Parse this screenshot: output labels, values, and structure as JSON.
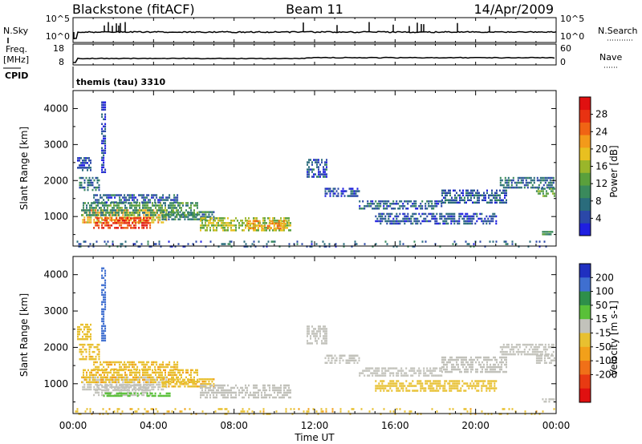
{
  "header": {
    "station": "Blackstone (fitACF)",
    "beam": "Beam 11",
    "date": "14/Apr/2009"
  },
  "strips": {
    "nsky": {
      "label": "N.Sky",
      "ticks": [
        "10^5",
        "10^0"
      ],
      "right_label": "N.Search",
      "right_ticks": [
        "10^5",
        "10^0"
      ]
    },
    "freq": {
      "label": "Freq.",
      "unit": "[MHz]",
      "ticks": [
        "18",
        "8"
      ],
      "right_label": "Nave",
      "right_ticks": [
        "60",
        "0"
      ]
    },
    "cpid": {
      "label": "CPID",
      "text": "themis (tau) 3310"
    }
  },
  "colors": {
    "power_scale": [
      "#1f1fe0",
      "#2b48a8",
      "#2a6c7c",
      "#3a8a5c",
      "#5aa03c",
      "#9ab62a",
      "#e8c020",
      "#f39a1a",
      "#f06414",
      "#e83212",
      "#e01010"
    ],
    "velocity_scale": [
      "#2030c0",
      "#3f6fd0",
      "#2e8f4a",
      "#59c039",
      "#c2c2bb",
      "#e8c030",
      "#f2a01a",
      "#f07018",
      "#e83a12",
      "#e01010"
    ]
  },
  "chart_data": [
    {
      "type": "heatmap",
      "name": "power",
      "xlabel": "Time UT",
      "ylabel": "Slant Range [km]",
      "xlim_hours": [
        0,
        24
      ],
      "ylim": [
        180,
        4500
      ],
      "x_ticks": [
        "00:00",
        "04:00",
        "08:00",
        "12:00",
        "16:00",
        "20:00",
        "00:00"
      ],
      "x_tick_hours": [
        0,
        4,
        8,
        12,
        16,
        20,
        24
      ],
      "y_ticks": [
        1000,
        2000,
        3000,
        4000
      ],
      "colorbar": {
        "label": "Power [dB]",
        "range": [
          0,
          32
        ],
        "ticks": [
          4,
          8,
          12,
          16,
          20,
          24,
          28
        ]
      },
      "regions": [
        {
          "t0": 0.45,
          "t1": 4.6,
          "r0": 850,
          "r1": 1200,
          "value": 20
        },
        {
          "t0": 1.0,
          "t1": 3.8,
          "r0": 700,
          "r1": 980,
          "value": 27
        },
        {
          "t0": 0.4,
          "t1": 6.2,
          "r0": 1050,
          "r1": 1400,
          "value": 11
        },
        {
          "t0": 1.0,
          "t1": 5.2,
          "r0": 1400,
          "r1": 1620,
          "value": 6
        },
        {
          "t0": 4.4,
          "t1": 7.0,
          "r0": 900,
          "r1": 1150,
          "value": 9
        },
        {
          "t0": 6.3,
          "t1": 10.8,
          "r0": 620,
          "r1": 980,
          "value": 16
        },
        {
          "t0": 8.6,
          "t1": 10.6,
          "r0": 650,
          "r1": 900,
          "value": 21
        },
        {
          "t0": 0.2,
          "t1": 0.9,
          "r0": 2250,
          "r1": 2650,
          "value": 5
        },
        {
          "t0": 0.3,
          "t1": 1.3,
          "r0": 1700,
          "r1": 2100,
          "value": 7
        },
        {
          "t0": 1.4,
          "t1": 1.6,
          "r0": 2200,
          "r1": 4200,
          "value": 4
        },
        {
          "t0": 0.1,
          "t1": 24.0,
          "r0": 190,
          "r1": 330,
          "value": 6
        },
        {
          "t0": 11.6,
          "t1": 12.6,
          "r0": 2100,
          "r1": 2600,
          "value": 5
        },
        {
          "t0": 12.5,
          "t1": 14.2,
          "r0": 1550,
          "r1": 1800,
          "value": 5
        },
        {
          "t0": 14.2,
          "t1": 18.3,
          "r0": 1200,
          "r1": 1450,
          "value": 6
        },
        {
          "t0": 18.3,
          "t1": 21.5,
          "r0": 1350,
          "r1": 1750,
          "value": 6
        },
        {
          "t0": 15.0,
          "t1": 21.0,
          "r0": 780,
          "r1": 1100,
          "value": 5
        },
        {
          "t0": 21.2,
          "t1": 23.9,
          "r0": 1800,
          "r1": 2100,
          "value": 7
        },
        {
          "t0": 23.0,
          "t1": 23.9,
          "r0": 1550,
          "r1": 1800,
          "value": 12
        },
        {
          "t0": 23.3,
          "t1": 24.0,
          "r0": 480,
          "r1": 600,
          "value": 9
        }
      ]
    },
    {
      "type": "heatmap",
      "name": "velocity",
      "xlabel": "Time UT",
      "ylabel": "Slant Range [km]",
      "xlim_hours": [
        0,
        24
      ],
      "ylim": [
        180,
        4500
      ],
      "x_ticks": [
        "00:00",
        "04:00",
        "08:00",
        "12:00",
        "16:00",
        "20:00",
        "00:00"
      ],
      "x_tick_hours": [
        0,
        4,
        8,
        12,
        16,
        20,
        24
      ],
      "y_ticks": [
        1000,
        2000,
        3000,
        4000
      ],
      "colorbar": {
        "label": "Velocity [m s-1]",
        "boundaries": [
          -250,
          -200,
          -100,
          -50,
          -15,
          15,
          50,
          100,
          200,
          250
        ],
        "tick_labels": [
          "200",
          "100",
          "50",
          "15",
          "-15",
          "-50",
          "-100",
          "-200"
        ]
      },
      "regions": [
        {
          "t0": 0.45,
          "t1": 4.6,
          "r0": 850,
          "r1": 1200,
          "value": 0
        },
        {
          "t0": 1.0,
          "t1": 3.8,
          "r0": 700,
          "r1": 980,
          "value": 0
        },
        {
          "t0": 0.4,
          "t1": 6.2,
          "r0": 1050,
          "r1": 1400,
          "value": -40
        },
        {
          "t0": 1.0,
          "t1": 5.2,
          "r0": 1400,
          "r1": 1620,
          "value": -40
        },
        {
          "t0": 4.4,
          "t1": 7.0,
          "r0": 900,
          "r1": 1150,
          "value": -40
        },
        {
          "t0": 6.3,
          "t1": 10.8,
          "r0": 620,
          "r1": 980,
          "value": 0
        },
        {
          "t0": 1.5,
          "t1": 4.8,
          "r0": 650,
          "r1": 760,
          "value": 30
        },
        {
          "t0": 0.2,
          "t1": 0.9,
          "r0": 2250,
          "r1": 2650,
          "value": -30
        },
        {
          "t0": 0.3,
          "t1": 1.3,
          "r0": 1700,
          "r1": 2100,
          "value": -40
        },
        {
          "t0": 1.4,
          "t1": 1.6,
          "r0": 2200,
          "r1": 4200,
          "value": 120
        },
        {
          "t0": 0.1,
          "t1": 24.0,
          "r0": 190,
          "r1": 330,
          "value": -40
        },
        {
          "t0": 11.6,
          "t1": 12.6,
          "r0": 2100,
          "r1": 2600,
          "value": 0
        },
        {
          "t0": 12.5,
          "t1": 14.2,
          "r0": 1550,
          "r1": 1800,
          "value": 0
        },
        {
          "t0": 14.2,
          "t1": 18.3,
          "r0": 1200,
          "r1": 1450,
          "value": 0
        },
        {
          "t0": 18.3,
          "t1": 21.5,
          "r0": 1350,
          "r1": 1750,
          "value": 0
        },
        {
          "t0": 15.0,
          "t1": 21.0,
          "r0": 780,
          "r1": 1100,
          "value": -30
        },
        {
          "t0": 21.2,
          "t1": 23.9,
          "r0": 1800,
          "r1": 2100,
          "value": 0
        },
        {
          "t0": 23.0,
          "t1": 23.9,
          "r0": 1550,
          "r1": 1800,
          "value": 0
        },
        {
          "t0": 23.3,
          "t1": 24.0,
          "r0": 480,
          "r1": 600,
          "value": 0
        }
      ]
    }
  ]
}
